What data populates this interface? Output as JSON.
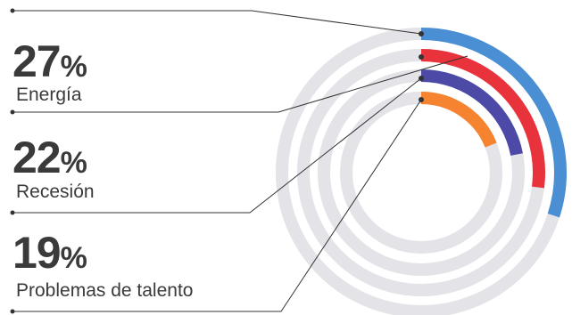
{
  "chart_data": {
    "type": "radial-bar",
    "title": "",
    "max": 100,
    "items": [
      {
        "label": "",
        "percent": 30,
        "display": "",
        "color": "#4a8fd4"
      },
      {
        "label": "Energía",
        "percent": 27,
        "display": "27",
        "color": "#e8333c"
      },
      {
        "label": "Recesión",
        "percent": 22,
        "display": "22",
        "color": "#4c4aa6"
      },
      {
        "label": "Problemas de talento",
        "percent": 19,
        "display": "19",
        "color": "#f5832f"
      }
    ],
    "percent_symbol": "%",
    "track_color": "#e3e3e8",
    "leader_color": "#333333"
  }
}
